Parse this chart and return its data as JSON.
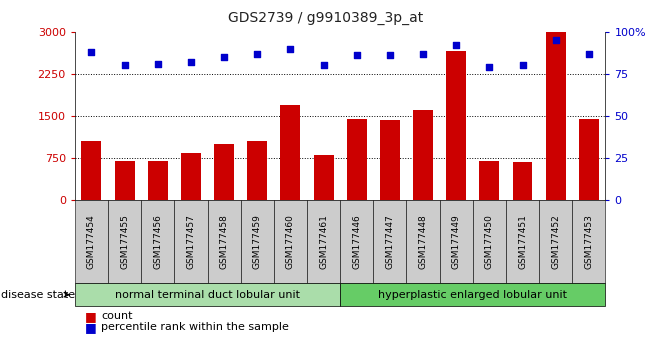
{
  "title": "GDS2739 / g9910389_3p_at",
  "samples": [
    "GSM177454",
    "GSM177455",
    "GSM177456",
    "GSM177457",
    "GSM177458",
    "GSM177459",
    "GSM177460",
    "GSM177461",
    "GSM177446",
    "GSM177447",
    "GSM177448",
    "GSM177449",
    "GSM177450",
    "GSM177451",
    "GSM177452",
    "GSM177453"
  ],
  "counts": [
    1050,
    700,
    700,
    830,
    1000,
    1050,
    1700,
    800,
    1450,
    1430,
    1600,
    2650,
    700,
    680,
    3000,
    1450
  ],
  "percentiles": [
    88,
    80,
    81,
    82,
    85,
    87,
    90,
    80,
    86,
    86,
    87,
    92,
    79,
    80,
    95,
    87
  ],
  "bar_color": "#cc0000",
  "dot_color": "#0000cc",
  "ylim_left": [
    0,
    3000
  ],
  "ylim_right": [
    0,
    100
  ],
  "yticks_left": [
    0,
    750,
    1500,
    2250,
    3000
  ],
  "yticks_right": [
    0,
    25,
    50,
    75,
    100
  ],
  "yticklabels_left": [
    "0",
    "750",
    "1500",
    "2250",
    "3000"
  ],
  "yticklabels_right": [
    "0",
    "25",
    "50",
    "75",
    "100%"
  ],
  "grid_values": [
    750,
    1500,
    2250
  ],
  "group1_label": "normal terminal duct lobular unit",
  "group2_label": "hyperplastic enlarged lobular unit",
  "group1_count": 8,
  "group2_count": 8,
  "disease_state_label": "disease state",
  "legend_count_label": "count",
  "legend_percentile_label": "percentile rank within the sample",
  "group1_color": "#aaddaa",
  "group2_color": "#66cc66",
  "left_tick_color": "#cc0000",
  "right_tick_color": "#0000cc",
  "cell_bg": "#cccccc",
  "plot_bg": "#ffffff"
}
